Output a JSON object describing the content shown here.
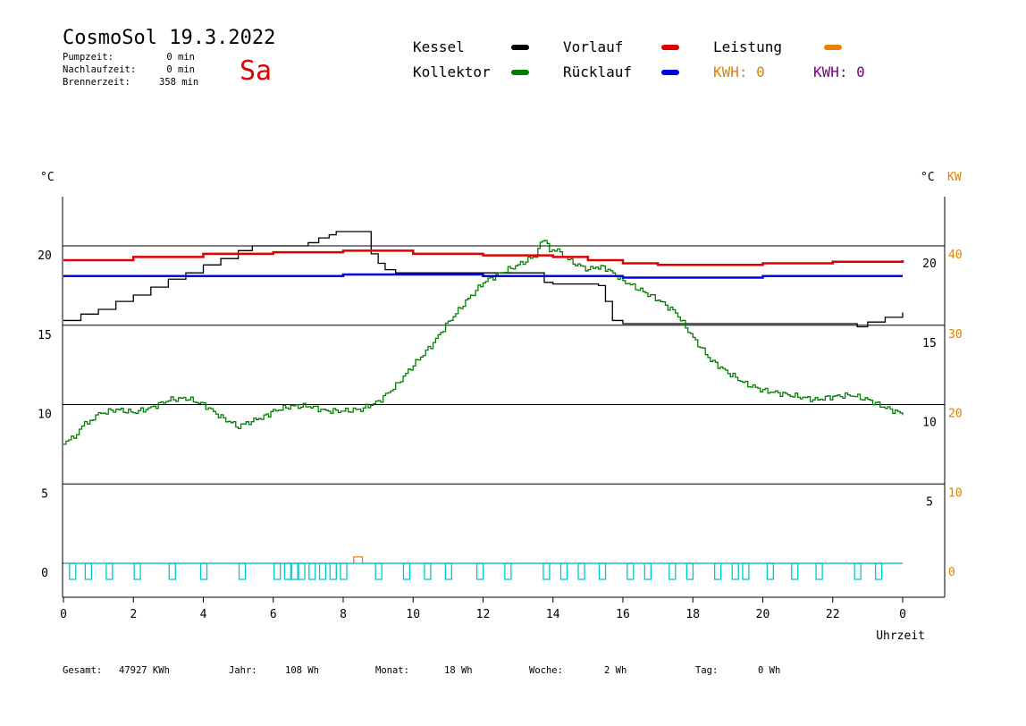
{
  "header": {
    "title": "CosmoSol 19.3.2022",
    "day": "Sa",
    "stats": [
      {
        "label": "Pumpzeit:",
        "value": "0 min"
      },
      {
        "label": "Nachlaufzeit:",
        "value": "0 min"
      },
      {
        "label": "Brennerzeit:",
        "value": "358 min"
      }
    ]
  },
  "legend": {
    "kessel": {
      "label": "Kessel",
      "color": "#000000"
    },
    "kollektor": {
      "label": "Kollektor",
      "color": "#008000"
    },
    "vorlauf": {
      "label": "Vorlauf",
      "color": "#e00000"
    },
    "ruecklauf": {
      "label": "Rücklauf",
      "color": "#0000e0"
    },
    "leistung": {
      "label": "Leistung",
      "color": "#f08000"
    },
    "kwh_orange": "KWH: 0",
    "kwh_purple": "KWH: 0",
    "kwh_orange_color": "#e08000",
    "kwh_purple_color": "#800080"
  },
  "footer": {
    "gesamt_label": "Gesamt:",
    "gesamt_value": "47927 KWh",
    "jahr_label": "Jahr:",
    "jahr_value": "108 Wh",
    "monat_label": "Monat:",
    "monat_value": "18 Wh",
    "woche_label": "Woche:",
    "woche_value": "2 Wh",
    "tag_label": "Tag:",
    "tag_value": "0 Wh"
  },
  "chart_data": {
    "type": "line",
    "xlabel": "Uhrzeit",
    "ylabel_left": "°C",
    "ylabel_right": "°C",
    "ylabel_right2": "KW",
    "xlim": [
      0,
      24
    ],
    "ylim": [
      -2,
      23.5
    ],
    "x_ticks": [
      "0",
      "2",
      "4",
      "6",
      "8",
      "10",
      "12",
      "14",
      "16",
      "18",
      "20",
      "22",
      "0"
    ],
    "y_ticks_left": [
      "0",
      "5",
      "10",
      "15",
      "20"
    ],
    "y_ticks_right": [
      "5",
      "10",
      "15",
      "20"
    ],
    "y_ticks_kw": [
      "0",
      "10",
      "20",
      "30",
      "40"
    ],
    "hlines": [
      5,
      10,
      15,
      20
    ],
    "series": [
      {
        "name": "Kessel",
        "color": "#000000",
        "x": [
          0,
          0.5,
          1,
          1.5,
          2,
          2.5,
          3,
          3.5,
          4,
          4.5,
          5,
          5.4,
          7,
          7.3,
          7.6,
          7.8,
          8.3,
          8.75,
          8.8,
          9,
          9.2,
          9.5,
          12,
          13.7,
          13.75,
          14,
          15,
          15.3,
          15.5,
          15.7,
          16,
          18,
          20,
          22,
          22.6,
          22.7,
          23,
          23.5,
          24
        ],
        "y": [
          15.3,
          15.7,
          16.0,
          16.5,
          16.9,
          17.4,
          17.9,
          18.3,
          18.8,
          19.2,
          19.7,
          20.0,
          20.2,
          20.5,
          20.7,
          20.9,
          20.9,
          20.9,
          19.5,
          18.9,
          18.5,
          18.3,
          18.3,
          18.3,
          17.7,
          17.6,
          17.6,
          17.5,
          16.5,
          15.3,
          15.1,
          15.1,
          15.1,
          15.1,
          15.1,
          14.9,
          15.2,
          15.5,
          15.8
        ]
      },
      {
        "name": "Kollektor",
        "color": "#008000",
        "x": [
          0,
          0.3,
          0.6,
          1,
          1.5,
          2,
          2.5,
          3,
          3.5,
          4,
          4.5,
          5,
          5.3,
          5.8,
          6,
          6.5,
          7,
          7.5,
          8,
          8.5,
          9,
          9.5,
          10,
          10.5,
          11,
          11.5,
          12,
          12.5,
          13,
          13.5,
          13.7,
          13.9,
          14.2,
          14.5,
          15,
          15.3,
          15.5,
          16,
          16.5,
          17,
          17.5,
          18,
          18.5,
          19,
          19.5,
          20,
          20.5,
          21,
          21.5,
          22,
          22.5,
          23,
          23.5,
          24
        ],
        "y": [
          7.5,
          8.0,
          8.8,
          9.4,
          9.7,
          9.5,
          9.8,
          10.3,
          10.4,
          10.0,
          9.2,
          8.6,
          8.9,
          9.3,
          9.6,
          9.9,
          9.9,
          9.6,
          9.6,
          9.7,
          10.2,
          11.2,
          12.5,
          13.7,
          15.2,
          16.5,
          17.7,
          18.3,
          18.8,
          19.4,
          20.5,
          19.8,
          19.6,
          19.0,
          18.5,
          18.7,
          18.6,
          17.8,
          17.2,
          16.6,
          15.8,
          14.2,
          12.8,
          12.0,
          11.3,
          10.9,
          10.7,
          10.5,
          10.3,
          10.5,
          10.6,
          10.3,
          9.8,
          9.4
        ]
      },
      {
        "name": "Vorlauf",
        "color": "#e00000",
        "x": [
          0,
          2,
          4,
          6,
          8,
          9,
          10,
          12,
          14,
          15,
          16,
          17,
          18,
          20,
          22,
          24
        ],
        "y": [
          19.1,
          19.3,
          19.5,
          19.6,
          19.7,
          19.7,
          19.5,
          19.4,
          19.3,
          19.1,
          18.9,
          18.8,
          18.8,
          18.9,
          19.0,
          19.1
        ]
      },
      {
        "name": "Rücklauf",
        "color": "#0000e0",
        "x": [
          0,
          4,
          8,
          12,
          14,
          16,
          18,
          20,
          22,
          24
        ],
        "y": [
          18.1,
          18.1,
          18.2,
          18.1,
          18.1,
          18.0,
          18.0,
          18.1,
          18.1,
          18.1
        ]
      },
      {
        "name": "Leistung",
        "color": "#f08000",
        "x": [
          0,
          8.25,
          8.3,
          8.5,
          8.55,
          24
        ],
        "y": [
          0,
          0,
          0.4,
          0.4,
          0,
          0
        ]
      }
    ],
    "pump_pulses_x": [
      0.25,
      0.7,
      1.3,
      2.1,
      3.1,
      4.0,
      5.1,
      6.1,
      6.4,
      6.6,
      6.8,
      7.1,
      7.4,
      7.7,
      8.0,
      9.0,
      9.8,
      10.4,
      11.0,
      11.9,
      12.7,
      13.8,
      14.3,
      14.8,
      15.4,
      16.2,
      16.7,
      17.4,
      17.9,
      18.7,
      19.2,
      19.5,
      20.2,
      20.9,
      21.6,
      22.7,
      23.3
    ],
    "pump_color": "#00c8c8"
  }
}
